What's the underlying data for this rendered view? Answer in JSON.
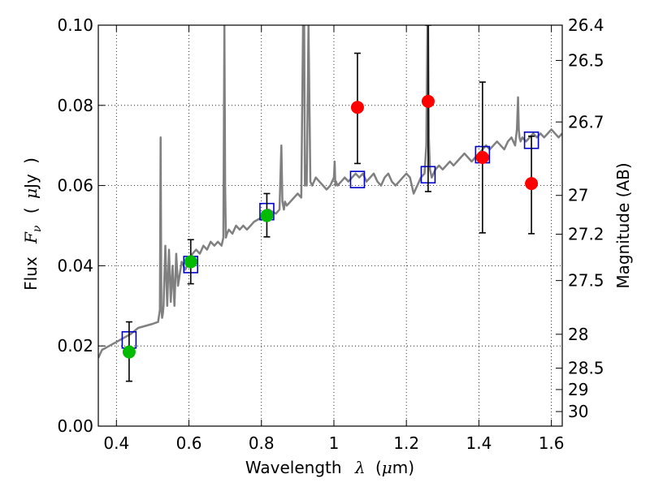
{
  "chart_data": {
    "type": "scatter",
    "xlabel": {
      "prefix": "Wavelength",
      "symbol": "λ",
      "unit_open": "(",
      "unit_mu": "μ",
      "unit_rest": "m)"
    },
    "ylabel": {
      "prefix": "Flux",
      "symbol": "F",
      "subscript": "ν",
      "unit_open": "(",
      "unit_mu": "μ",
      "unit_rest": "Jy",
      "unit_close": ")"
    },
    "y2label": "Magnitude (AB)",
    "xlim": [
      0.35,
      1.63
    ],
    "ylim": [
      0.0,
      0.1
    ],
    "xticks": [
      {
        "value": 0.4,
        "label": "0.4"
      },
      {
        "value": 0.6,
        "label": "0.6"
      },
      {
        "value": 0.8,
        "label": "0.8"
      },
      {
        "value": 1.0,
        "label": "1"
      },
      {
        "value": 1.2,
        "label": "1.2"
      },
      {
        "value": 1.4,
        "label": "1.4"
      },
      {
        "value": 1.6,
        "label": "1.6"
      }
    ],
    "yticks": [
      {
        "value": 0.0,
        "label": "0.00"
      },
      {
        "value": 0.02,
        "label": "0.02"
      },
      {
        "value": 0.04,
        "label": "0.04"
      },
      {
        "value": 0.06,
        "label": "0.06"
      },
      {
        "value": 0.08,
        "label": "0.08"
      },
      {
        "value": 0.1,
        "label": "0.10"
      }
    ],
    "y2ticks": [
      {
        "mag": 26.4,
        "label": "26.4"
      },
      {
        "mag": 26.5,
        "label": "26.5"
      },
      {
        "mag": 26.7,
        "label": "26.7"
      },
      {
        "mag": 27.0,
        "label": "27"
      },
      {
        "mag": 27.2,
        "label": "27.2"
      },
      {
        "mag": 27.5,
        "label": "27.5"
      },
      {
        "mag": 28.0,
        "label": "28"
      },
      {
        "mag": 28.5,
        "label": "28.5"
      },
      {
        "mag": 29.0,
        "label": "29"
      },
      {
        "mag": 30.0,
        "label": "30"
      }
    ],
    "grid": true,
    "colors": {
      "spectrum": "#808080",
      "model_box": "#0000cc",
      "detection": "#00bb00",
      "upper": "#ff0000",
      "errorbar": "#000000"
    },
    "series": [
      {
        "kind": "spectrum",
        "x": [
          0.35,
          0.36,
          0.38,
          0.4,
          0.42,
          0.44,
          0.46,
          0.48,
          0.5,
          0.515,
          0.52,
          0.522,
          0.524,
          0.526,
          0.528,
          0.53,
          0.535,
          0.54,
          0.545,
          0.55,
          0.555,
          0.56,
          0.565,
          0.57,
          0.58,
          0.59,
          0.6,
          0.61,
          0.62,
          0.63,
          0.64,
          0.65,
          0.66,
          0.67,
          0.68,
          0.69,
          0.695,
          0.698,
          0.7,
          0.702,
          0.705,
          0.71,
          0.72,
          0.73,
          0.74,
          0.75,
          0.76,
          0.77,
          0.78,
          0.8,
          0.82,
          0.84,
          0.85,
          0.855,
          0.858,
          0.86,
          0.862,
          0.865,
          0.87,
          0.88,
          0.89,
          0.9,
          0.91,
          0.915,
          0.918,
          0.92,
          0.922,
          0.925,
          0.93,
          0.935,
          0.94,
          0.95,
          0.96,
          0.97,
          0.98,
          0.99,
          1.0,
          1.002,
          1.004,
          1.006,
          1.01,
          1.02,
          1.03,
          1.04,
          1.05,
          1.06,
          1.07,
          1.08,
          1.09,
          1.1,
          1.11,
          1.12,
          1.13,
          1.14,
          1.15,
          1.16,
          1.17,
          1.18,
          1.19,
          1.2,
          1.21,
          1.22,
          1.23,
          1.24,
          1.25,
          1.255,
          1.258,
          1.26,
          1.262,
          1.265,
          1.27,
          1.275,
          1.28,
          1.29,
          1.3,
          1.31,
          1.32,
          1.33,
          1.34,
          1.35,
          1.36,
          1.37,
          1.38,
          1.39,
          1.4,
          1.41,
          1.42,
          1.43,
          1.44,
          1.45,
          1.46,
          1.47,
          1.48,
          1.49,
          1.5,
          1.505,
          1.508,
          1.51,
          1.512,
          1.515,
          1.52,
          1.53,
          1.54,
          1.55,
          1.56,
          1.57,
          1.58,
          1.59,
          1.6,
          1.61,
          1.62,
          1.63
        ],
        "y": [
          0.017,
          0.019,
          0.02,
          0.021,
          0.022,
          0.023,
          0.0245,
          0.025,
          0.0255,
          0.026,
          0.029,
          0.072,
          0.03,
          0.027,
          0.028,
          0.03,
          0.045,
          0.03,
          0.044,
          0.031,
          0.04,
          0.03,
          0.043,
          0.035,
          0.041,
          0.039,
          0.041,
          0.043,
          0.044,
          0.043,
          0.045,
          0.044,
          0.046,
          0.045,
          0.046,
          0.045,
          0.047,
          0.1,
          0.06,
          0.047,
          0.048,
          0.049,
          0.048,
          0.05,
          0.049,
          0.05,
          0.049,
          0.05,
          0.051,
          0.052,
          0.054,
          0.053,
          0.054,
          0.07,
          0.056,
          0.055,
          0.054,
          0.056,
          0.055,
          0.056,
          0.057,
          0.058,
          0.057,
          0.1,
          0.1,
          0.06,
          0.065,
          0.06,
          0.1,
          0.061,
          0.06,
          0.062,
          0.061,
          0.06,
          0.059,
          0.06,
          0.062,
          0.066,
          0.06,
          0.061,
          0.06,
          0.061,
          0.062,
          0.061,
          0.062,
          0.063,
          0.062,
          0.063,
          0.061,
          0.062,
          0.063,
          0.061,
          0.06,
          0.062,
          0.063,
          0.061,
          0.06,
          0.061,
          0.062,
          0.063,
          0.062,
          0.058,
          0.06,
          0.062,
          0.063,
          0.07,
          0.1,
          0.1,
          0.072,
          0.064,
          0.062,
          0.063,
          0.064,
          0.065,
          0.064,
          0.065,
          0.066,
          0.065,
          0.066,
          0.067,
          0.068,
          0.067,
          0.066,
          0.067,
          0.068,
          0.069,
          0.07,
          0.069,
          0.07,
          0.071,
          0.07,
          0.069,
          0.071,
          0.072,
          0.07,
          0.074,
          0.082,
          0.074,
          0.072,
          0.071,
          0.072,
          0.071,
          0.072,
          0.073,
          0.072,
          0.073,
          0.072,
          0.073,
          0.074,
          0.073,
          0.072,
          0.073
        ]
      },
      {
        "kind": "model_box",
        "x": [
          0.435,
          0.605,
          0.815,
          1.065,
          1.26,
          1.41,
          1.545
        ],
        "y": [
          0.0215,
          0.0403,
          0.0535,
          0.0615,
          0.0627,
          0.0677,
          0.0713
        ]
      },
      {
        "kind": "detection",
        "x": [
          0.435,
          0.605,
          0.815
        ],
        "y": [
          0.0185,
          0.041,
          0.0525
        ],
        "err_low": [
          0.0112,
          0.0355,
          0.0472
        ],
        "err_high": [
          0.026,
          0.0465,
          0.058
        ]
      },
      {
        "kind": "upper",
        "x": [
          1.065,
          1.26,
          1.41,
          1.545
        ],
        "y": [
          0.0795,
          0.081,
          0.067,
          0.0605
        ],
        "err_low": [
          0.0655,
          0.0585,
          0.0482,
          0.048
        ],
        "err_high": [
          0.093,
          0.1,
          0.0858,
          0.0723
        ]
      }
    ]
  }
}
